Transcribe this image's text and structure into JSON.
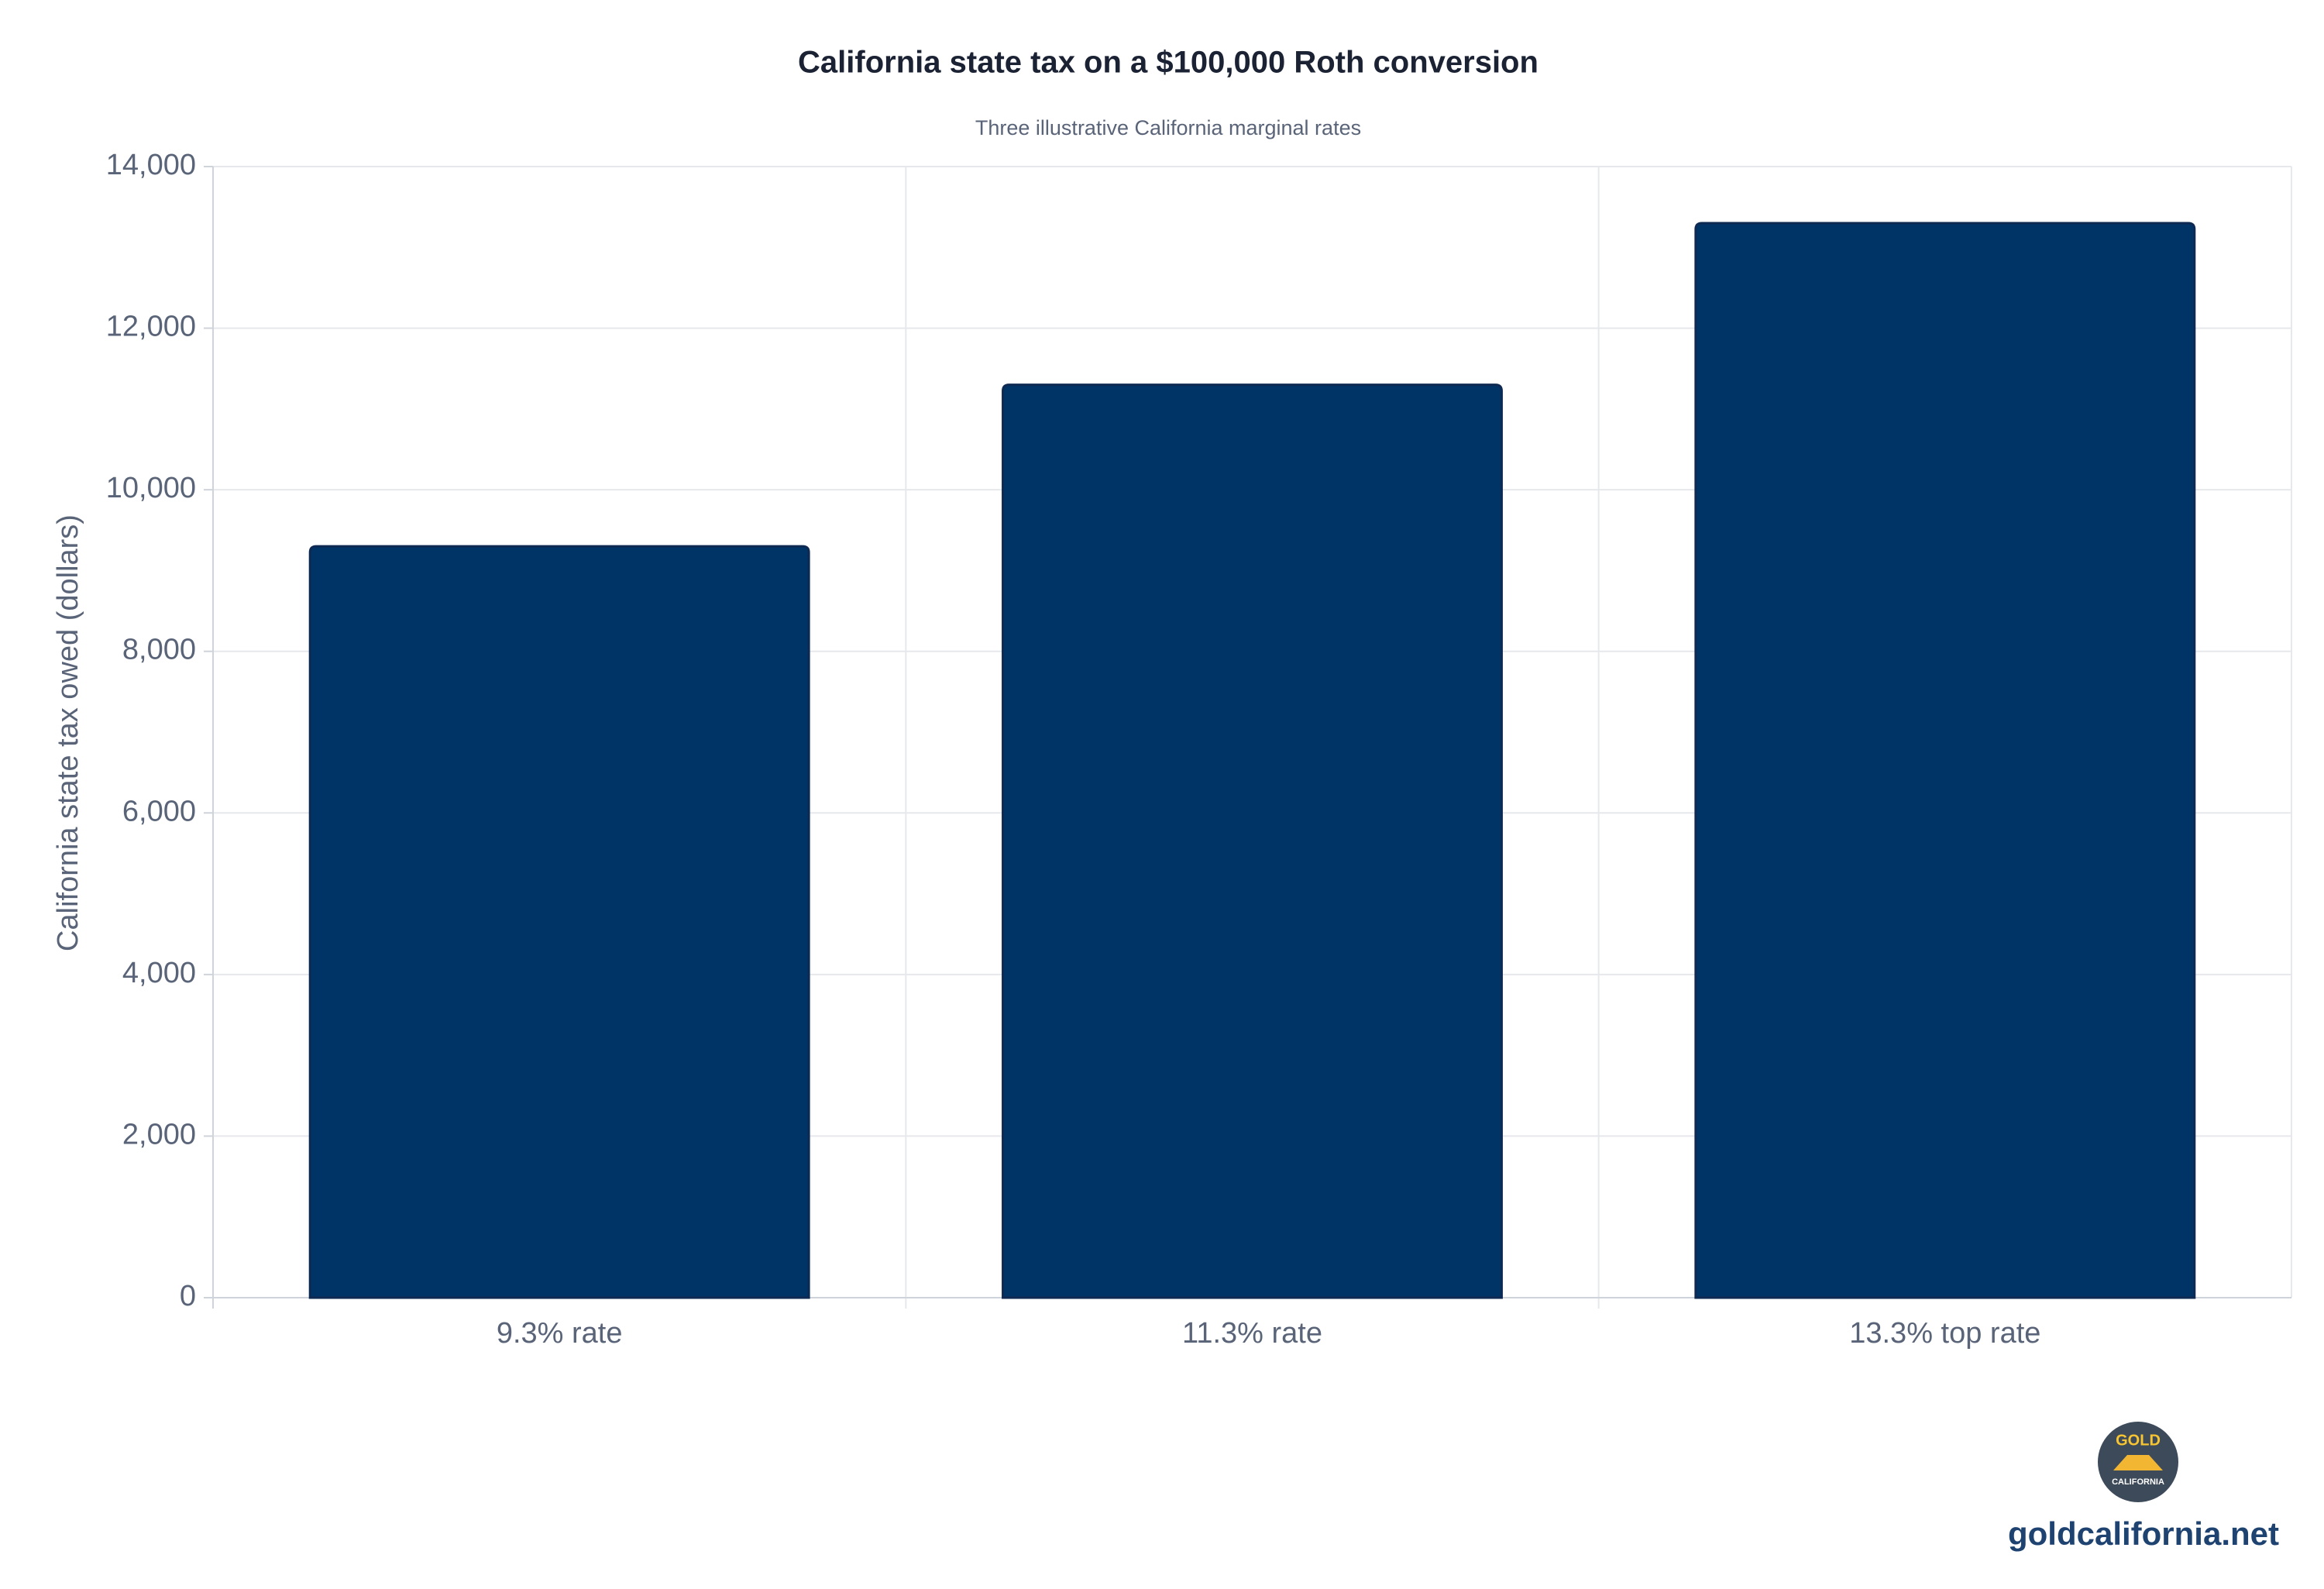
{
  "chart_data": {
    "type": "bar",
    "title": "California state tax on a $100,000 Roth conversion",
    "subtitle": "Three illustrative California marginal rates",
    "y_label": "California state tax owed (dollars)",
    "categories": [
      "9.3% rate",
      "11.3% rate",
      "13.3% top rate"
    ],
    "values": [
      9300,
      11300,
      13300
    ],
    "color": "#003366",
    "ylim": [
      0,
      14000
    ],
    "yticks": [
      0,
      {
        "value": 2000,
        "label": "2,000"
      },
      {
        "value": 4000,
        "label": "4,000"
      },
      {
        "value": 6000,
        "label": "6,000"
      },
      {
        "value": 8000,
        "label": "8,000"
      },
      {
        "value": 10000,
        "label": "10,000"
      },
      {
        "value": 12000,
        "label": "12,000"
      },
      {
        "value": 14000,
        "label": "14,000"
      }
    ],
    "grid": true
  },
  "footer": {
    "logo_top": "GOLD",
    "logo_bottom": "CALIFORNIA",
    "site": "goldcalifornia.net"
  }
}
